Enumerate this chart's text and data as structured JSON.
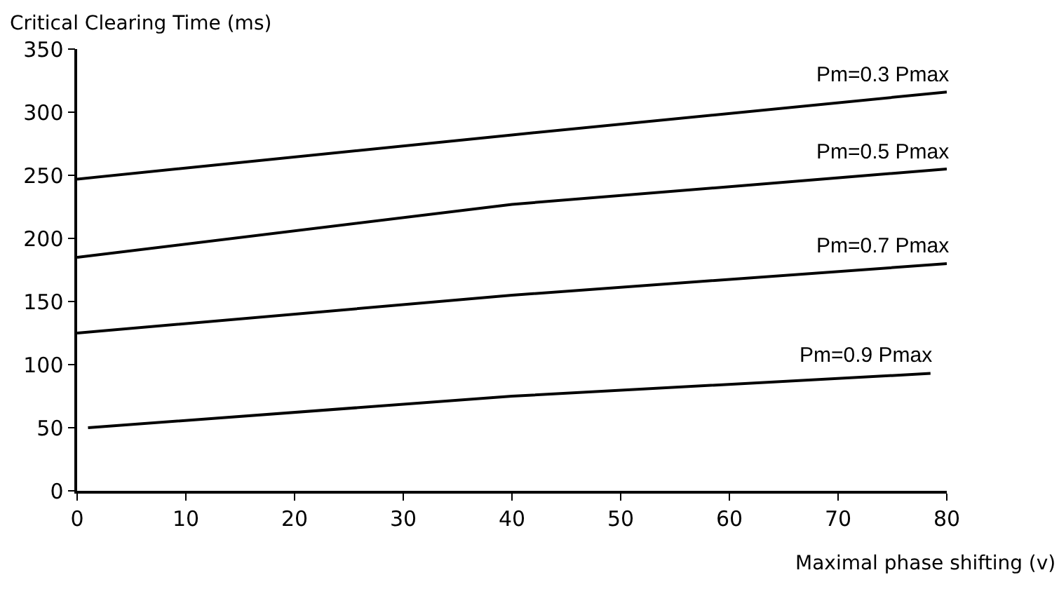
{
  "chart_data": {
    "type": "line",
    "xlabel": "Maximal phase shifting (v)",
    "ylabel": "Critical Clearing Time (ms)",
    "x": [
      0,
      40,
      80
    ],
    "series": [
      {
        "name": "Pm=0.3 Pmax",
        "color": "#000000",
        "values": [
          247,
          282,
          316
        ]
      },
      {
        "name": "Pm=0.5 Pmax",
        "color": "#000000",
        "values": [
          185,
          227,
          255
        ]
      },
      {
        "name": "Pm=0.7 Pmax",
        "color": "#000000",
        "values": [
          125,
          155,
          180
        ]
      },
      {
        "name": "Pm=0.9 Pmax",
        "color": "#000000",
        "x": [
          1,
          40,
          78.5
        ],
        "values": [
          50,
          75,
          93
        ]
      }
    ],
    "xlim": [
      0,
      80
    ],
    "xticks": [
      0,
      10,
      20,
      30,
      40,
      50,
      60,
      70,
      80
    ],
    "ylim": [
      0,
      350
    ],
    "yticks": [
      0,
      50,
      100,
      150,
      200,
      250,
      300,
      350
    ],
    "marker": "none",
    "line_style": "solid"
  }
}
